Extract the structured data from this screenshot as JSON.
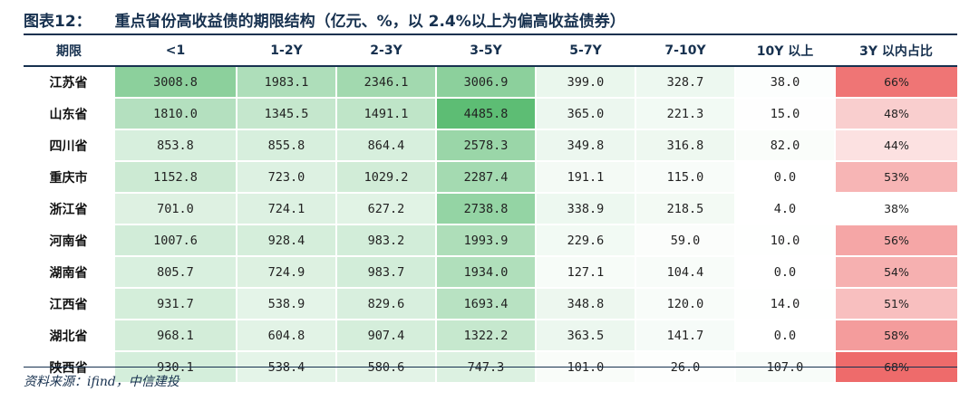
{
  "figure": {
    "label": "图表12：",
    "title": "重点省份高收益债的期限结构（亿元、%，以 2.4%以上为偏高收益债券）",
    "source": "资料来源：ifind，中信建投"
  },
  "colors": {
    "title": "#17314f",
    "green_scale": [
      "#ffffff",
      "#5dbd74"
    ],
    "red_scale": [
      "#ffffff",
      "#ee6b6b"
    ]
  },
  "chart_data": {
    "type": "table",
    "columns": [
      "期限",
      "<1",
      "1-2Y",
      "2-3Y",
      "3-5Y",
      "5-7Y",
      "7-10Y",
      "10Y 以上",
      "3Y 以内占比"
    ],
    "rows": [
      {
        "province": "江苏省",
        "values": [
          "3008.8",
          "1983.1",
          "2346.1",
          "3006.9",
          "399.0",
          "328.7",
          "38.0"
        ],
        "share": "66%"
      },
      {
        "province": "山东省",
        "values": [
          "1810.0",
          "1345.5",
          "1491.1",
          "4485.8",
          "365.0",
          "221.3",
          "15.0"
        ],
        "share": "48%"
      },
      {
        "province": "四川省",
        "values": [
          "853.8",
          "855.8",
          "864.4",
          "2578.3",
          "349.8",
          "316.8",
          "82.0"
        ],
        "share": "44%"
      },
      {
        "province": "重庆市",
        "values": [
          "1152.8",
          "723.0",
          "1029.2",
          "2287.4",
          "191.1",
          "115.0",
          "0.0"
        ],
        "share": "53%"
      },
      {
        "province": "浙江省",
        "values": [
          "701.0",
          "724.1",
          "627.2",
          "2738.8",
          "338.9",
          "218.5",
          "4.0"
        ],
        "share": "38%"
      },
      {
        "province": "河南省",
        "values": [
          "1007.6",
          "928.4",
          "983.2",
          "1993.9",
          "229.6",
          "59.0",
          "10.0"
        ],
        "share": "56%"
      },
      {
        "province": "湖南省",
        "values": [
          "805.7",
          "724.9",
          "983.7",
          "1934.0",
          "127.1",
          "104.4",
          "0.0"
        ],
        "share": "54%"
      },
      {
        "province": "江西省",
        "values": [
          "931.7",
          "538.9",
          "829.6",
          "1693.4",
          "348.8",
          "120.0",
          "14.0"
        ],
        "share": "51%"
      },
      {
        "province": "湖北省",
        "values": [
          "968.1",
          "604.8",
          "907.4",
          "1322.2",
          "363.5",
          "141.7",
          "0.0"
        ],
        "share": "58%"
      },
      {
        "province": "陕西省",
        "values": [
          "930.1",
          "538.4",
          "580.6",
          "747.3",
          "101.0",
          "26.0",
          "107.0"
        ],
        "share": "68%"
      }
    ]
  }
}
